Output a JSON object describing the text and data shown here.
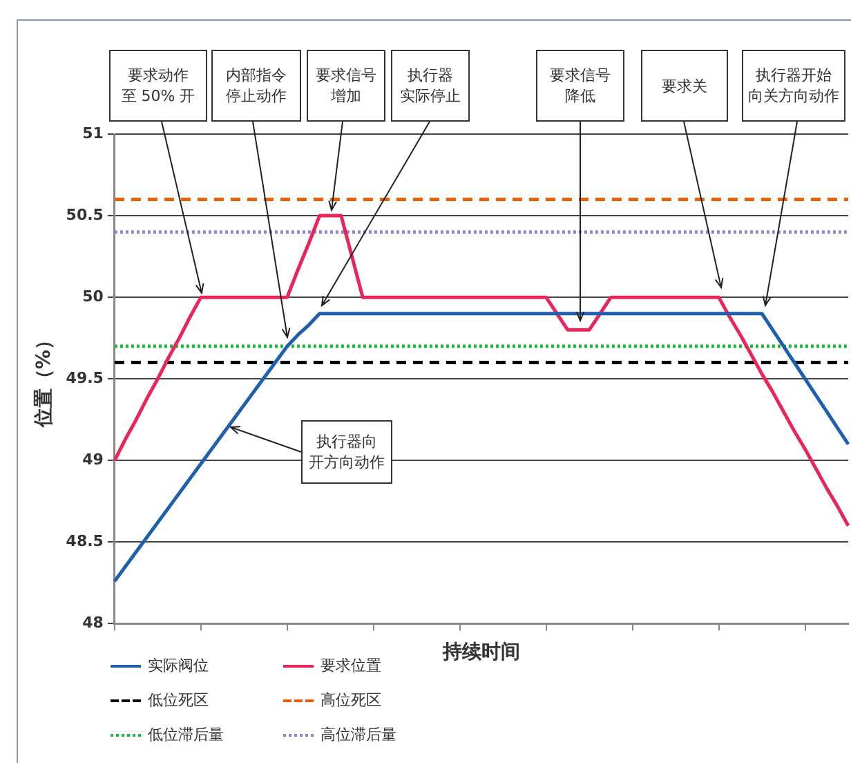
{
  "chart_data": {
    "type": "line",
    "xlabel": "持续时间",
    "ylabel": "位置（%）",
    "categories": [
      null,
      null,
      null,
      null,
      null,
      null,
      null,
      null,
      null,
      null,
      null,
      null,
      null,
      null,
      null,
      null,
      null,
      null,
      null,
      null,
      null,
      null,
      null,
      null,
      null,
      null,
      null,
      null,
      null,
      null,
      null,
      null,
      null,
      null,
      null,
      null,
      null,
      null,
      null,
      null,
      null,
      null,
      null,
      null,
      null,
      null,
      null,
      null,
      null,
      null,
      null,
      null,
      null,
      null,
      null,
      null,
      null,
      null,
      null,
      null,
      null,
      null,
      null,
      null,
      null,
      null,
      null,
      null,
      null
    ],
    "ylim": [
      48,
      51
    ],
    "yticks": [
      48,
      48.5,
      49,
      49.5,
      50,
      50.5,
      51
    ],
    "grid": "y",
    "tick_labels": "y",
    "legend": "bottom left",
    "marker": "none",
    "series": [
      {
        "name": "实际阀位",
        "color": "#1f5fad",
        "line_style": "solid",
        "values": [
          48.26,
          48.35,
          48.44,
          48.53,
          48.62,
          48.71,
          48.8,
          48.89,
          48.98,
          49.07,
          49.16,
          49.25,
          49.34,
          49.43,
          49.52,
          49.61,
          49.7,
          49.77,
          49.83,
          49.9,
          49.9,
          49.9,
          49.9,
          49.9,
          49.9,
          49.9,
          49.9,
          49.9,
          49.9,
          49.9,
          49.9,
          49.9,
          49.9,
          49.9,
          49.9,
          49.9,
          49.9,
          49.9,
          49.9,
          49.9,
          49.9,
          49.9,
          49.9,
          49.9,
          49.9,
          49.9,
          49.9,
          49.9,
          49.9,
          49.9,
          49.9,
          49.9,
          49.9,
          49.9,
          49.9,
          49.9,
          49.9,
          49.9,
          49.9,
          49.9,
          49.9,
          49.8,
          49.7,
          49.6,
          49.5,
          49.4,
          49.3,
          49.2,
          49.1
        ]
      },
      {
        "name": "要求位置",
        "color": "#e8265a",
        "line_style": "solid",
        "values": [
          49,
          49.13,
          49.25,
          49.38,
          49.5,
          49.63,
          49.75,
          49.88,
          50,
          50,
          50,
          50,
          50,
          50,
          50,
          50,
          50,
          50.17,
          50.33,
          50.5,
          50.5,
          50.5,
          50.25,
          50,
          50,
          50,
          50,
          50,
          50,
          50,
          50,
          50,
          50,
          50,
          50,
          50,
          50,
          50,
          50,
          50,
          50,
          49.9,
          49.8,
          49.8,
          49.8,
          49.9,
          50,
          50,
          50,
          50,
          50,
          50,
          50,
          50,
          50,
          50,
          50,
          49.88,
          49.77,
          49.65,
          49.53,
          49.42,
          49.3,
          49.18,
          49.07,
          48.95,
          48.83,
          48.72,
          48.6
        ]
      },
      {
        "name": "低位死区",
        "color": "#000000",
        "line_style": "dashed",
        "values": [
          49.6,
          49.6,
          49.6,
          49.6,
          49.6,
          49.6,
          49.6,
          49.6,
          49.6,
          49.6,
          49.6,
          49.6,
          49.6,
          49.6,
          49.6,
          49.6,
          49.6,
          49.6,
          49.6,
          49.6,
          49.6,
          49.6,
          49.6,
          49.6,
          49.6,
          49.6,
          49.6,
          49.6,
          49.6,
          49.6,
          49.6,
          49.6,
          49.6,
          49.6,
          49.6,
          49.6,
          49.6,
          49.6,
          49.6,
          49.6,
          49.6,
          49.6,
          49.6,
          49.6,
          49.6,
          49.6,
          49.6,
          49.6,
          49.6,
          49.6,
          49.6,
          49.6,
          49.6,
          49.6,
          49.6,
          49.6,
          49.6,
          49.6,
          49.6,
          49.6,
          49.6,
          49.6,
          49.6,
          49.6,
          49.6,
          49.6,
          49.6,
          49.6,
          49.6
        ]
      },
      {
        "name": "高位死区",
        "color": "#e8600a",
        "line_style": "dashed",
        "values": [
          50.6,
          50.6,
          50.6,
          50.6,
          50.6,
          50.6,
          50.6,
          50.6,
          50.6,
          50.6,
          50.6,
          50.6,
          50.6,
          50.6,
          50.6,
          50.6,
          50.6,
          50.6,
          50.6,
          50.6,
          50.6,
          50.6,
          50.6,
          50.6,
          50.6,
          50.6,
          50.6,
          50.6,
          50.6,
          50.6,
          50.6,
          50.6,
          50.6,
          50.6,
          50.6,
          50.6,
          50.6,
          50.6,
          50.6,
          50.6,
          50.6,
          50.6,
          50.6,
          50.6,
          50.6,
          50.6,
          50.6,
          50.6,
          50.6,
          50.6,
          50.6,
          50.6,
          50.6,
          50.6,
          50.6,
          50.6,
          50.6,
          50.6,
          50.6,
          50.6,
          50.6,
          50.6,
          50.6,
          50.6,
          50.6,
          50.6,
          50.6,
          50.6,
          50.6
        ]
      },
      {
        "name": "低位滞后量",
        "color": "#22b33c",
        "line_style": "dotted",
        "values": [
          49.7,
          49.7,
          49.7,
          49.7,
          49.7,
          49.7,
          49.7,
          49.7,
          49.7,
          49.7,
          49.7,
          49.7,
          49.7,
          49.7,
          49.7,
          49.7,
          49.7,
          49.7,
          49.7,
          49.7,
          49.7,
          49.7,
          49.7,
          49.7,
          49.7,
          49.7,
          49.7,
          49.7,
          49.7,
          49.7,
          49.7,
          49.7,
          49.7,
          49.7,
          49.7,
          49.7,
          49.7,
          49.7,
          49.7,
          49.7,
          49.7,
          49.7,
          49.7,
          49.7,
          49.7,
          49.7,
          49.7,
          49.7,
          49.7,
          49.7,
          49.7,
          49.7,
          49.7,
          49.7,
          49.7,
          49.7,
          49.7,
          49.7,
          49.7,
          49.7,
          49.7,
          49.7,
          49.7,
          49.7,
          49.7,
          49.7,
          49.7,
          49.7,
          49.7
        ]
      },
      {
        "name": "高位滞后量",
        "color": "#8c86d6",
        "line_style": "dotted",
        "values": [
          50.4,
          50.4,
          50.4,
          50.4,
          50.4,
          50.4,
          50.4,
          50.4,
          50.4,
          50.4,
          50.4,
          50.4,
          50.4,
          50.4,
          50.4,
          50.4,
          50.4,
          50.4,
          50.4,
          50.4,
          50.4,
          50.4,
          50.4,
          50.4,
          50.4,
          50.4,
          50.4,
          50.4,
          50.4,
          50.4,
          50.4,
          50.4,
          50.4,
          50.4,
          50.4,
          50.4,
          50.4,
          50.4,
          50.4,
          50.4,
          50.4,
          50.4,
          50.4,
          50.4,
          50.4,
          50.4,
          50.4,
          50.4,
          50.4,
          50.4,
          50.4,
          50.4,
          50.4,
          50.4,
          50.4,
          50.4,
          50.4,
          50.4,
          50.4,
          50.4,
          50.4,
          50.4,
          50.4,
          50.4,
          50.4,
          50.4,
          50.4,
          50.4,
          50.4
        ]
      }
    ],
    "annotations": [
      "要求动作至 50% 开",
      "内部指令停止动作",
      "要求信号增加",
      "执行器实际停止",
      "要求信号降低",
      "要求关",
      "执行器开始向关方向动作",
      "执行器向开方向动作"
    ]
  }
}
